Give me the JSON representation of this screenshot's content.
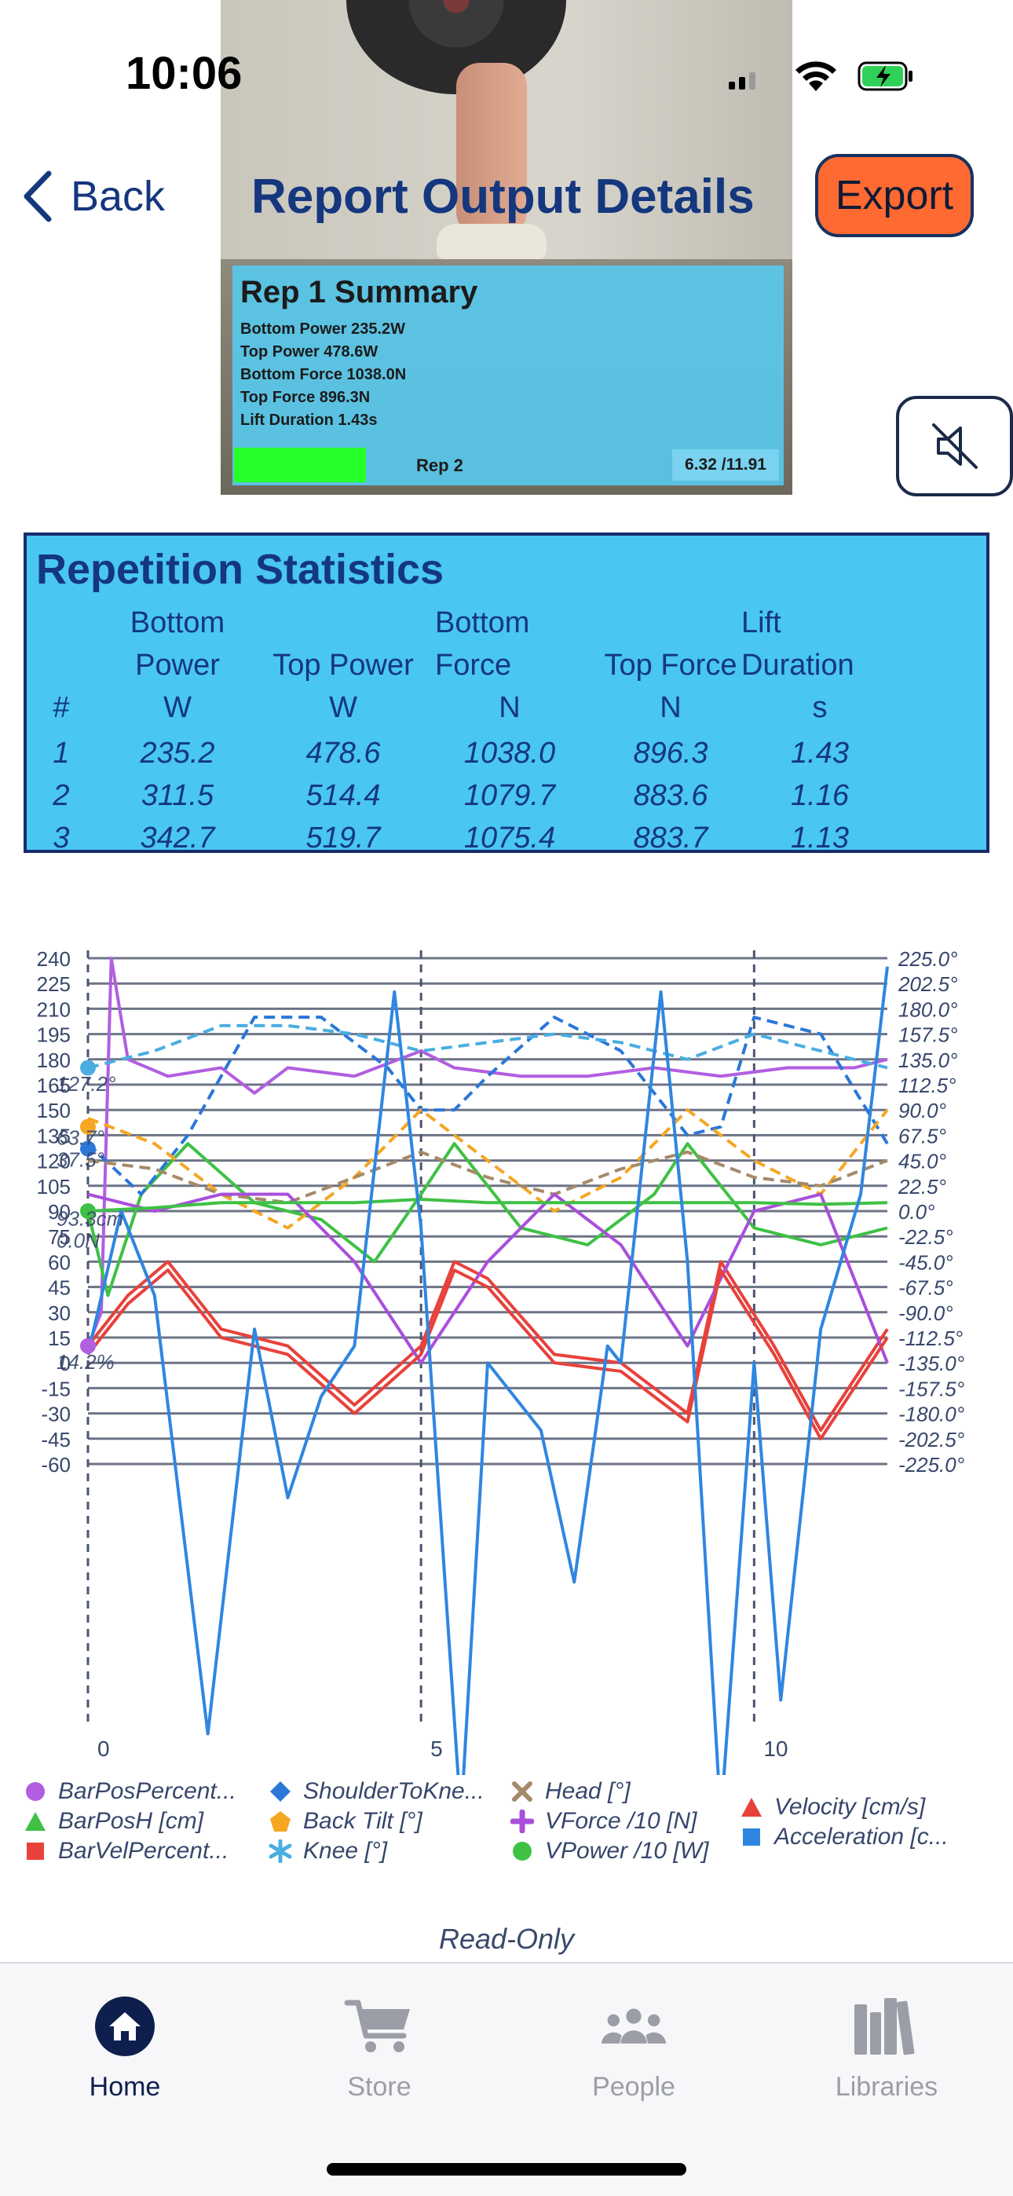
{
  "status_bar": {
    "time": "10:06"
  },
  "nav": {
    "back_label": "Back",
    "title": "Report Output Details",
    "export_label": "Export"
  },
  "video_overlay": {
    "title": "Rep 1 Summary",
    "lines": [
      "Bottom Power 235.2W",
      "Top Power 478.6W",
      "Bottom Force 1038.0N",
      "Top Force 896.3N",
      "Lift Duration  1.43s"
    ],
    "next_label": "Rep 2",
    "time": "6.32 /11.91",
    "progress": 0.24
  },
  "stats": {
    "title": "Repetition Statistics",
    "columns": [
      {
        "name": [
          "",
          ""
        ],
        "unit": "#"
      },
      {
        "name": [
          "Bottom",
          "Power"
        ],
        "unit": "W"
      },
      {
        "name": [
          "",
          "Top Power"
        ],
        "unit": "W"
      },
      {
        "name": [
          "Bottom",
          "Force"
        ],
        "unit": "N"
      },
      {
        "name": [
          "",
          "Top Force"
        ],
        "unit": "N"
      },
      {
        "name": [
          "Lift",
          "Duration"
        ],
        "unit": "s"
      }
    ],
    "rows": [
      [
        "1",
        "235.2",
        "478.6",
        "1038.0",
        "896.3",
        "1.43"
      ],
      [
        "2",
        "311.5",
        "514.4",
        "1079.7",
        "883.6",
        "1.16"
      ],
      [
        "3",
        "342.7",
        "519.7",
        "1075.4",
        "883.7",
        "1.13"
      ]
    ]
  },
  "chart_data": {
    "type": "line",
    "x_range": [
      0,
      12.0
    ],
    "x_ticks": [
      "0",
      "5",
      "10"
    ],
    "left_ticks": [
      "240",
      "225",
      "210",
      "195",
      "180",
      "165",
      "150",
      "135",
      "120",
      "105",
      "90",
      "75",
      "60",
      "45",
      "30",
      "15",
      "0",
      "-15",
      "-30",
      "-45",
      "-60"
    ],
    "right_ticks": [
      "225.0°",
      "202.5°",
      "180.0°",
      "157.5°",
      "135.0°",
      "112.5°",
      "90.0°",
      "67.5°",
      "45.0°",
      "22.5°",
      "0.0°",
      "-22.5°",
      "-45.0°",
      "-67.5°",
      "-90.0°",
      "-112.5°",
      "-135.0°",
      "-157.5°",
      "-180.0°",
      "-202.5°",
      "-225.0°"
    ],
    "left_range": [
      -60,
      240
    ],
    "marker_labels": [
      "127.2°",
      "63.7°",
      "37.5°",
      "93.3cm",
      "0.0N",
      "14.2%"
    ],
    "series": [
      {
        "name": "BarPosPercent...",
        "color": "#b15ee0",
        "marker": "circle",
        "values": [
          [
            0,
            10
          ],
          [
            0.2,
            30
          ],
          [
            0.35,
            240
          ],
          [
            0.6,
            180
          ],
          [
            1.2,
            170
          ],
          [
            2.0,
            175
          ],
          [
            2.5,
            160
          ],
          [
            3.0,
            175
          ],
          [
            4.0,
            170
          ],
          [
            5.0,
            185
          ],
          [
            5.5,
            175
          ],
          [
            6.5,
            170
          ],
          [
            7.5,
            170
          ],
          [
            8.5,
            175
          ],
          [
            9.5,
            170
          ],
          [
            10.5,
            175
          ],
          [
            11.5,
            175
          ],
          [
            12,
            180
          ]
        ]
      },
      {
        "name": "BarPosH [cm]",
        "color": "#3fc145",
        "marker": "triangle",
        "values": [
          [
            0,
            90
          ],
          [
            0.3,
            40
          ],
          [
            0.8,
            100
          ],
          [
            1.5,
            130
          ],
          [
            2.5,
            95
          ],
          [
            3.5,
            85
          ],
          [
            4.3,
            60
          ],
          [
            5.0,
            100
          ],
          [
            5.5,
            130
          ],
          [
            6.5,
            80
          ],
          [
            7.5,
            70
          ],
          [
            8.5,
            100
          ],
          [
            9.0,
            130
          ],
          [
            10,
            80
          ],
          [
            11,
            70
          ],
          [
            12,
            80
          ]
        ]
      },
      {
        "name": "BarVelPercent...",
        "color": "#e8413b",
        "marker": "square",
        "values": [
          [
            0,
            10
          ],
          [
            0.6,
            40
          ],
          [
            1.2,
            60
          ],
          [
            2.0,
            20
          ],
          [
            3.0,
            10
          ],
          [
            4.0,
            -25
          ],
          [
            5.0,
            10
          ],
          [
            5.5,
            60
          ],
          [
            6.0,
            50
          ],
          [
            7.0,
            5
          ],
          [
            8.0,
            0
          ],
          [
            9.0,
            -30
          ],
          [
            9.5,
            60
          ],
          [
            10.3,
            10
          ],
          [
            11,
            -40
          ],
          [
            12,
            20
          ]
        ]
      },
      {
        "name": "ShoulderToKne...",
        "color": "#2a77d8",
        "marker": "diamond",
        "values": [
          [
            0,
            130
          ],
          [
            0.8,
            100
          ],
          [
            1.5,
            135
          ],
          [
            2.5,
            205
          ],
          [
            3.5,
            205
          ],
          [
            4.5,
            175
          ],
          [
            5.0,
            150
          ],
          [
            5.5,
            150
          ],
          [
            6.0,
            170
          ],
          [
            7.0,
            205
          ],
          [
            8.0,
            185
          ],
          [
            9.0,
            135
          ],
          [
            9.5,
            140
          ],
          [
            10.0,
            205
          ],
          [
            11.0,
            195
          ],
          [
            12.0,
            130
          ]
        ]
      },
      {
        "name": "Back Tilt [°]",
        "color": "#f5a623",
        "marker": "pentagon",
        "values": [
          [
            0,
            145
          ],
          [
            1.0,
            130
          ],
          [
            2.0,
            100
          ],
          [
            3.0,
            80
          ],
          [
            4.0,
            110
          ],
          [
            5.0,
            150
          ],
          [
            6.0,
            120
          ],
          [
            7.0,
            90
          ],
          [
            8.0,
            110
          ],
          [
            9.0,
            150
          ],
          [
            10.0,
            120
          ],
          [
            11.0,
            100
          ],
          [
            12.0,
            150
          ]
        ]
      },
      {
        "name": "Knee [°]",
        "color": "#4aaee0",
        "marker": "star",
        "values": [
          [
            0,
            175
          ],
          [
            1.0,
            185
          ],
          [
            2.0,
            200
          ],
          [
            3.0,
            200
          ],
          [
            4.0,
            195
          ],
          [
            5.0,
            185
          ],
          [
            6.0,
            190
          ],
          [
            7.0,
            195
          ],
          [
            8.0,
            190
          ],
          [
            9.0,
            180
          ],
          [
            10.0,
            195
          ],
          [
            11.0,
            185
          ],
          [
            12.0,
            175
          ]
        ]
      },
      {
        "name": "Head [°]",
        "color": "#a58a6a",
        "marker": "cross",
        "values": [
          [
            0,
            120
          ],
          [
            1.0,
            115
          ],
          [
            2.0,
            100
          ],
          [
            3.0,
            95
          ],
          [
            4.0,
            110
          ],
          [
            5.0,
            125
          ],
          [
            6.0,
            110
          ],
          [
            7.0,
            100
          ],
          [
            8.0,
            115
          ],
          [
            9.0,
            125
          ],
          [
            10.0,
            110
          ],
          [
            11.0,
            105
          ],
          [
            12.0,
            120
          ]
        ]
      },
      {
        "name": "VForce /10 [N]",
        "color": "#a94fdb",
        "marker": "plus",
        "values": [
          [
            0,
            100
          ],
          [
            1.0,
            90
          ],
          [
            2.0,
            100
          ],
          [
            3.0,
            100
          ],
          [
            4.0,
            60
          ],
          [
            5.0,
            0
          ],
          [
            6.0,
            60
          ],
          [
            7.0,
            100
          ],
          [
            8.0,
            70
          ],
          [
            9.0,
            10
          ],
          [
            10.0,
            90
          ],
          [
            11.0,
            100
          ],
          [
            12.0,
            0
          ]
        ]
      },
      {
        "name": "VPower /10 [W]",
        "color": "#3fc145",
        "marker": "circle",
        "values": [
          [
            0,
            90
          ],
          [
            1.0,
            92
          ],
          [
            2.0,
            95
          ],
          [
            3.0,
            95
          ],
          [
            4.0,
            95
          ],
          [
            5.0,
            97
          ],
          [
            6.0,
            95
          ],
          [
            7.0,
            95
          ],
          [
            8.0,
            95
          ],
          [
            9.0,
            95
          ],
          [
            10.0,
            95
          ],
          [
            11.0,
            94
          ],
          [
            12.0,
            95
          ]
        ]
      },
      {
        "name": "Velocity [cm/s]",
        "color": "#e8413b",
        "marker": "triangle",
        "values": [
          [
            0,
            5
          ],
          [
            0.6,
            35
          ],
          [
            1.2,
            55
          ],
          [
            2.0,
            15
          ],
          [
            3.0,
            5
          ],
          [
            4.0,
            -30
          ],
          [
            5.0,
            5
          ],
          [
            5.5,
            55
          ],
          [
            6.0,
            45
          ],
          [
            7.0,
            0
          ],
          [
            8.0,
            -5
          ],
          [
            9.0,
            -35
          ],
          [
            9.5,
            55
          ],
          [
            10.3,
            5
          ],
          [
            11,
            -45
          ],
          [
            12,
            15
          ]
        ]
      },
      {
        "name": "Acceleration [c...",
        "color": "#2f86e0",
        "marker": "square",
        "values": [
          [
            0,
            5
          ],
          [
            0.5,
            90
          ],
          [
            1.0,
            40
          ],
          [
            1.8,
            -220
          ],
          [
            2.5,
            20
          ],
          [
            3.0,
            -80
          ],
          [
            3.5,
            -20
          ],
          [
            4.0,
            10
          ],
          [
            4.6,
            220
          ],
          [
            5.0,
            80
          ],
          [
            5.6,
            -270
          ],
          [
            6.0,
            0
          ],
          [
            6.8,
            -40
          ],
          [
            7.3,
            -130
          ],
          [
            7.8,
            10
          ],
          [
            8.0,
            0
          ],
          [
            8.6,
            220
          ],
          [
            9.0,
            60
          ],
          [
            9.5,
            -270
          ],
          [
            10.0,
            0
          ],
          [
            10.4,
            -200
          ],
          [
            11.0,
            20
          ],
          [
            11.6,
            100
          ],
          [
            12.0,
            235
          ]
        ]
      }
    ]
  },
  "readonly_label": "Read-Only",
  "tabs": [
    {
      "label": "Home",
      "icon": "home-icon",
      "active": true
    },
    {
      "label": "Store",
      "icon": "cart-icon",
      "active": false
    },
    {
      "label": "People",
      "icon": "people-icon",
      "active": false
    },
    {
      "label": "Libraries",
      "icon": "libraries-icon",
      "active": false
    }
  ]
}
